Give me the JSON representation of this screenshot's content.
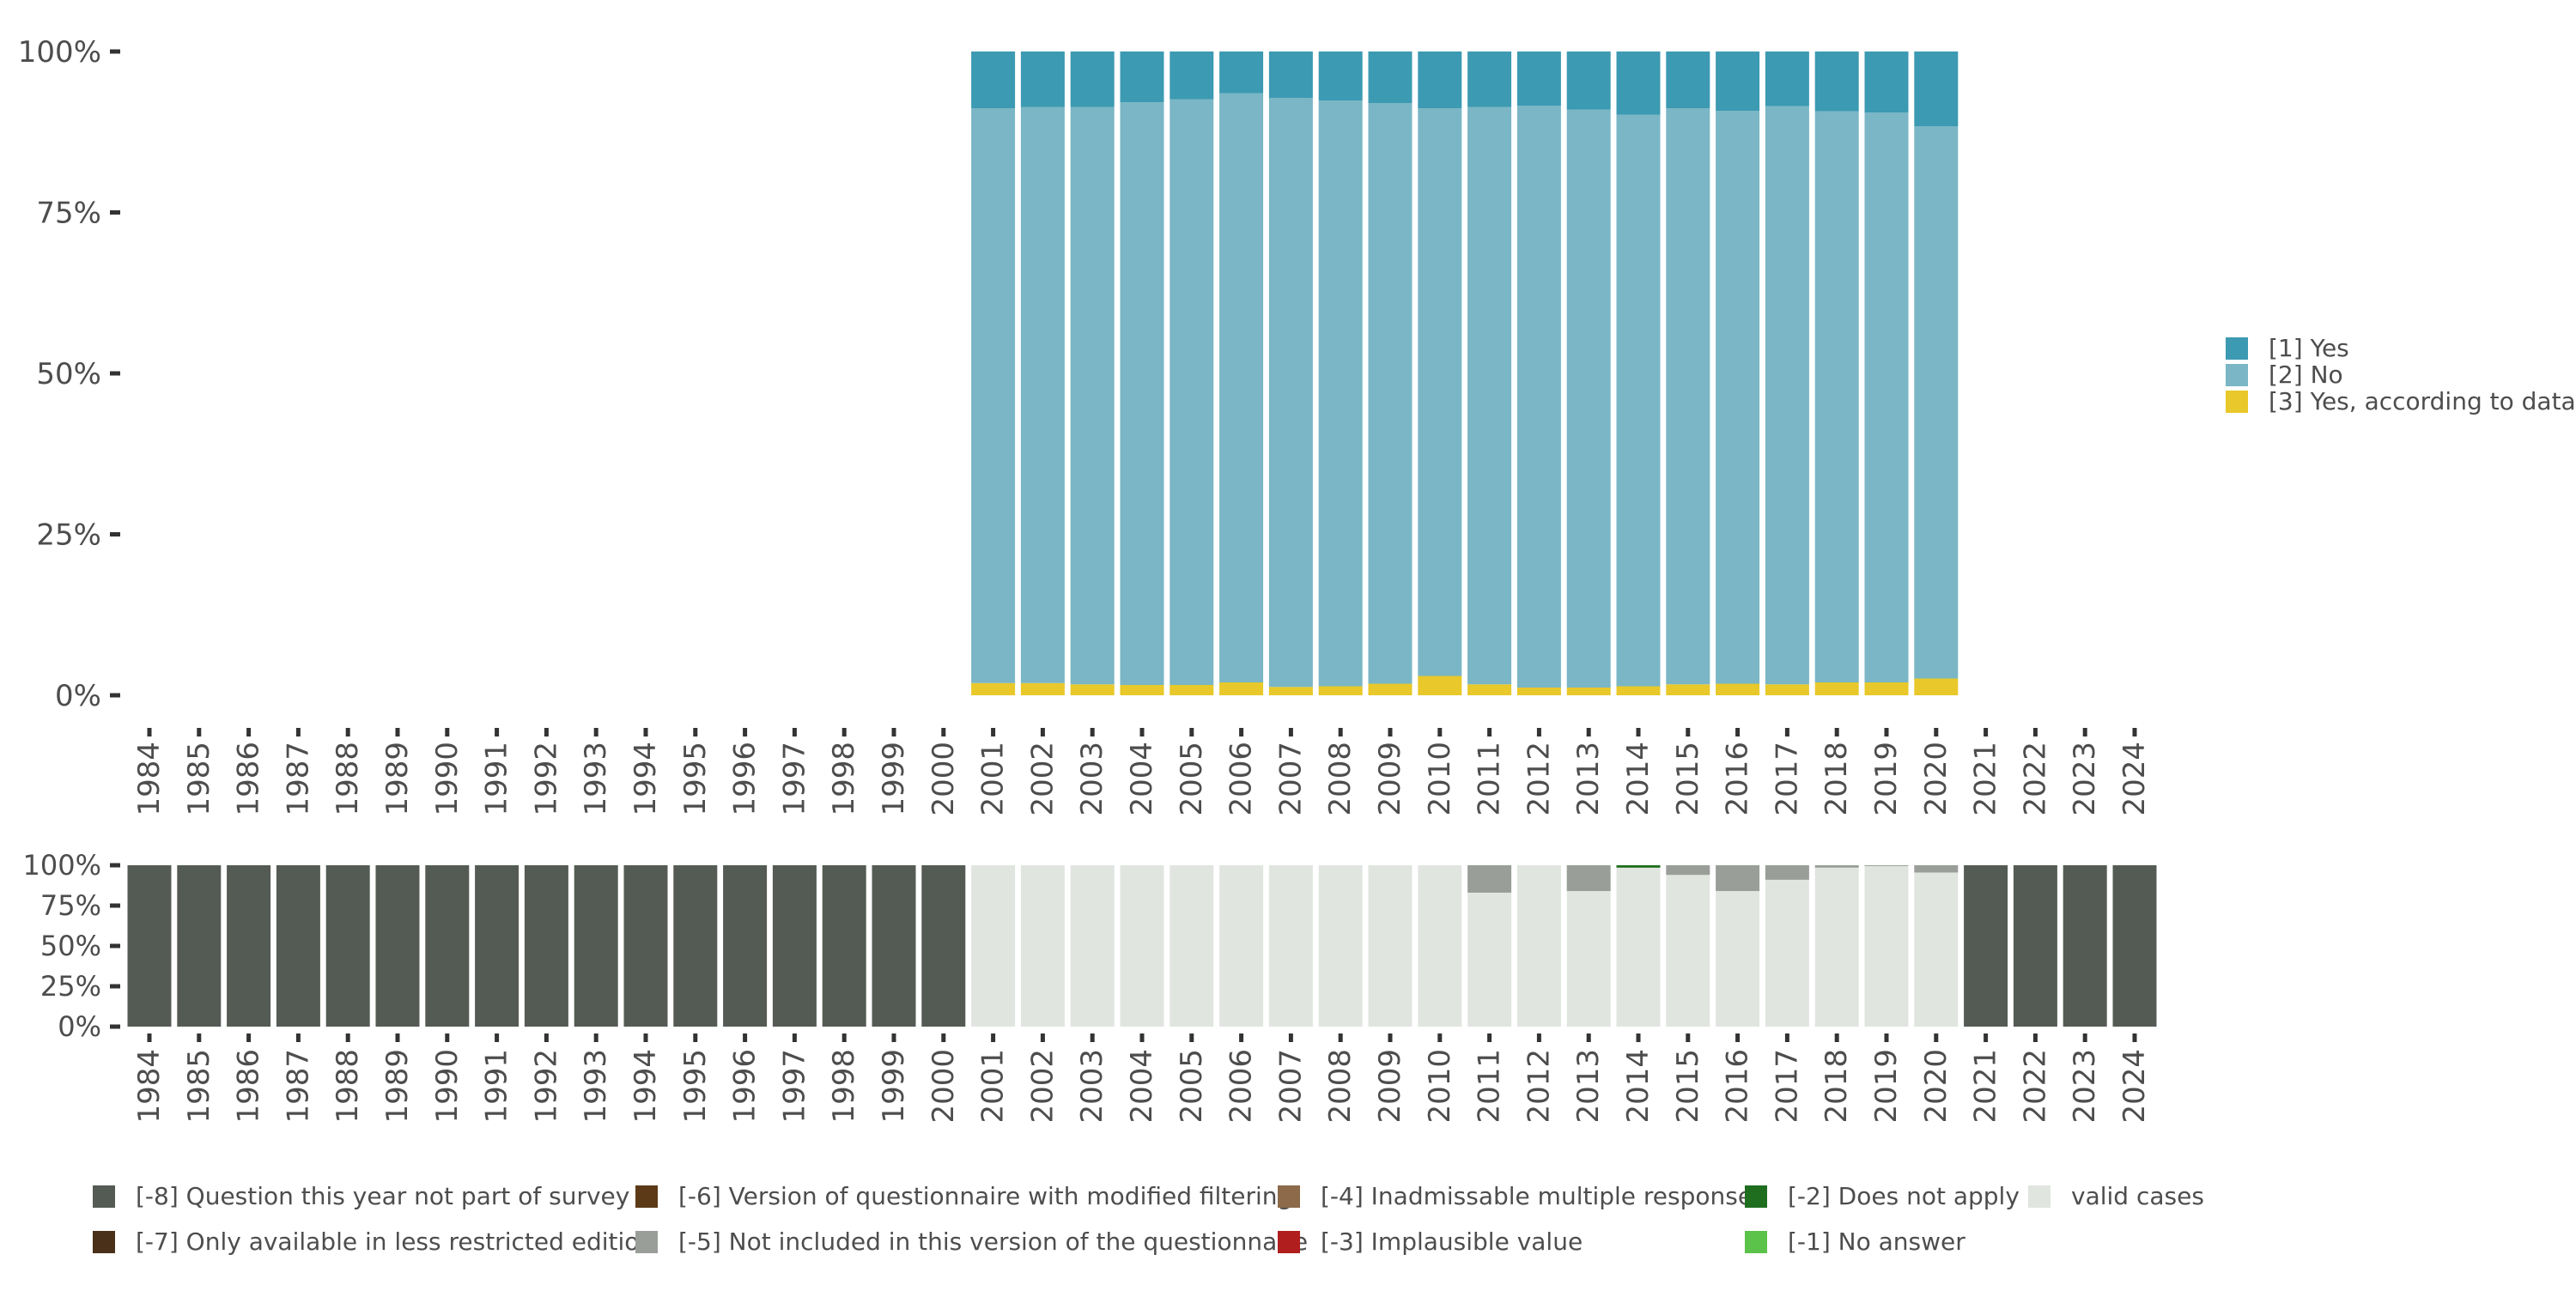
{
  "chart_data": [
    {
      "type": "bar",
      "stacked": true,
      "title": "",
      "xlabel": "",
      "ylabel": "",
      "ylim": [
        0,
        100
      ],
      "yticks": [
        "0%",
        "25%",
        "50%",
        "75%",
        "100%"
      ],
      "categories": [
        "1984",
        "1985",
        "1986",
        "1987",
        "1988",
        "1989",
        "1990",
        "1991",
        "1992",
        "1993",
        "1994",
        "1995",
        "1996",
        "1997",
        "1998",
        "1999",
        "2000",
        "2001",
        "2002",
        "2003",
        "2004",
        "2005",
        "2006",
        "2007",
        "2008",
        "2009",
        "2010",
        "2011",
        "2012",
        "2013",
        "2014",
        "2015",
        "2016",
        "2017",
        "2018",
        "2019",
        "2020",
        "2021",
        "2022",
        "2023",
        "2024"
      ],
      "legend_position": "right",
      "series": [
        {
          "name": "[3] Yes, according to data",
          "color": "#E8C82A",
          "values": [
            null,
            null,
            null,
            null,
            null,
            null,
            null,
            null,
            null,
            null,
            null,
            null,
            null,
            null,
            null,
            null,
            null,
            1.9,
            1.9,
            1.7,
            1.6,
            1.6,
            2.0,
            1.3,
            1.4,
            1.8,
            3.0,
            1.7,
            1.2,
            1.2,
            1.4,
            1.7,
            1.8,
            1.7,
            2.0,
            2.0,
            2.6,
            null,
            null,
            null,
            null
          ]
        },
        {
          "name": "[2] No",
          "color": "#7AB6C5",
          "values": [
            null,
            null,
            null,
            null,
            null,
            null,
            null,
            null,
            null,
            null,
            null,
            null,
            null,
            null,
            null,
            null,
            null,
            89.3,
            89.5,
            89.7,
            90.5,
            91.0,
            91.5,
            91.5,
            91.0,
            90.2,
            88.2,
            89.7,
            90.4,
            89.8,
            88.8,
            89.5,
            89.0,
            89.8,
            88.7,
            88.5,
            85.8,
            null,
            null,
            null,
            null
          ]
        },
        {
          "name": "[1] Yes",
          "color": "#3C9AB2",
          "values": [
            null,
            null,
            null,
            null,
            null,
            null,
            null,
            null,
            null,
            null,
            null,
            null,
            null,
            null,
            null,
            null,
            null,
            8.8,
            8.6,
            8.6,
            7.9,
            7.4,
            6.5,
            7.2,
            7.6,
            8.0,
            8.8,
            8.6,
            8.4,
            9.0,
            9.8,
            8.8,
            9.2,
            8.5,
            9.3,
            9.5,
            11.6,
            null,
            null,
            null,
            null
          ]
        }
      ]
    },
    {
      "type": "bar",
      "stacked": true,
      "title": "",
      "xlabel": "",
      "ylabel": "",
      "ylim": [
        0,
        100
      ],
      "yticks": [
        "0%",
        "25%",
        "50%",
        "75%",
        "100%"
      ],
      "categories": [
        "1984",
        "1985",
        "1986",
        "1987",
        "1988",
        "1989",
        "1990",
        "1991",
        "1992",
        "1993",
        "1994",
        "1995",
        "1996",
        "1997",
        "1998",
        "1999",
        "2000",
        "2001",
        "2002",
        "2003",
        "2004",
        "2005",
        "2006",
        "2007",
        "2008",
        "2009",
        "2010",
        "2011",
        "2012",
        "2013",
        "2014",
        "2015",
        "2016",
        "2017",
        "2018",
        "2019",
        "2020",
        "2021",
        "2022",
        "2023",
        "2024"
      ],
      "legend_position": "bottom",
      "legend_entries": [
        {
          "name": "[-8] Question this year not part of survey",
          "color": "#545B54"
        },
        {
          "name": "[-7] Only available in less restricted edition",
          "color": "#4A3018"
        },
        {
          "name": "[-6] Version of questionnaire with modified filtering",
          "color": "#5C3A17"
        },
        {
          "name": "[-5] Not included in this version of the questionnaire",
          "color": "#999E98"
        },
        {
          "name": "[-4] Inadmissable multiple response",
          "color": "#8C6A4A"
        },
        {
          "name": "[-3] Implausible value",
          "color": "#B01E1E"
        },
        {
          "name": "[-2] Does not apply",
          "color": "#1F6E1F"
        },
        {
          "name": "[-1] No answer",
          "color": "#5BC24A"
        },
        {
          "name": "valid cases",
          "color": "#E1E5E0"
        }
      ],
      "series": [
        {
          "name": "valid cases",
          "color": "#E1E5E0",
          "values": [
            0,
            0,
            0,
            0,
            0,
            0,
            0,
            0,
            0,
            0,
            0,
            0,
            0,
            0,
            0,
            0,
            0,
            100,
            100,
            100,
            100,
            100,
            100,
            100,
            100,
            100,
            100,
            83,
            100,
            84,
            98.5,
            94,
            84,
            91,
            98.5,
            99.5,
            95.5,
            0,
            0,
            0,
            0
          ]
        },
        {
          "name": "[-5] Not included in this version of the questionnaire",
          "color": "#999E98",
          "values": [
            0,
            0,
            0,
            0,
            0,
            0,
            0,
            0,
            0,
            0,
            0,
            0,
            0,
            0,
            0,
            0,
            0,
            0,
            0,
            0,
            0,
            0,
            0,
            0,
            0,
            0,
            0,
            17,
            0,
            16,
            0,
            6,
            16,
            9,
            1.5,
            0.5,
            4.5,
            0,
            0,
            0,
            0
          ]
        },
        {
          "name": "[-2] Does not apply",
          "color": "#1F6E1F",
          "values": [
            0,
            0,
            0,
            0,
            0,
            0,
            0,
            0,
            0,
            0,
            0,
            0,
            0,
            0,
            0,
            0,
            0,
            0,
            0,
            0,
            0,
            0,
            0,
            0,
            0,
            0,
            0,
            0,
            0,
            0,
            1.5,
            0,
            0,
            0,
            0,
            0,
            0,
            0,
            0,
            0,
            0
          ]
        },
        {
          "name": "[-8] Question this year not part of survey",
          "color": "#545B54",
          "values": [
            100,
            100,
            100,
            100,
            100,
            100,
            100,
            100,
            100,
            100,
            100,
            100,
            100,
            100,
            100,
            100,
            100,
            0,
            0,
            0,
            0,
            0,
            0,
            0,
            0,
            0,
            0,
            0,
            0,
            0,
            0,
            0,
            0,
            0,
            0,
            0,
            0,
            100,
            100,
            100,
            100
          ]
        }
      ]
    }
  ]
}
